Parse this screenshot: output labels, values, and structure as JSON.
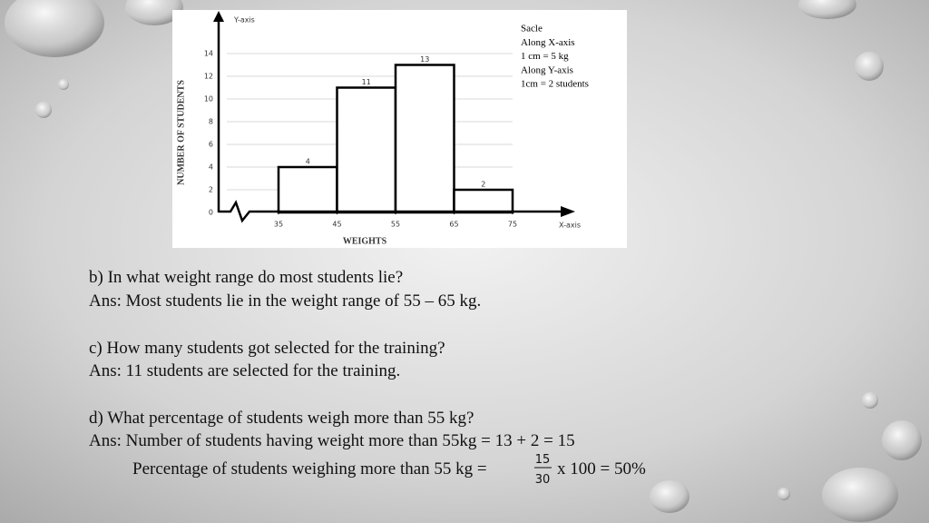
{
  "chart_data": {
    "type": "histogram",
    "y_axis_marker": "Y-axis",
    "x_axis_marker": "X-axis",
    "ylabel": "NUMBER  OF STUDENTS",
    "xlabel": "WEIGHTS",
    "bins": [
      35,
      45,
      55,
      65,
      75
    ],
    "values": [
      4,
      11,
      13,
      2
    ],
    "color": "#ffffff",
    "edgecolor": "#000000",
    "xlim": [
      35,
      75
    ],
    "xticks": [
      35,
      45,
      55,
      65,
      75
    ],
    "ylim": [
      0,
      14
    ],
    "yticks": [
      0,
      2,
      4,
      6,
      8,
      10,
      12,
      14
    ],
    "grid": true,
    "scale_note": [
      "Sacle",
      "Along X-axis",
      "1 cm = 5 kg",
      "Along Y-axis",
      "1cm = 2 students"
    ]
  },
  "questions": [
    {
      "question": "b) In what weight range do most students lie?",
      "answer": "Ans: Most students lie in the weight range of 55 – 65 kg."
    },
    {
      "question": "c) How many students got selected for the training?",
      "answer": "Ans: 11 students are selected for the training."
    },
    {
      "question": "d) What percentage of students weigh more than 55 kg?",
      "answer": "Ans: Number of students having weight more than 55kg = 13 + 2 = 15",
      "calculation": {
        "text": "Percentage of students weighing more than 55 kg =",
        "numerator": "15",
        "denominator": "30",
        "result": "x 100 = 50%"
      }
    }
  ]
}
